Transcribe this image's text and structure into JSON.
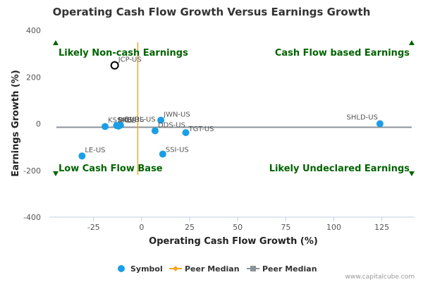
{
  "chart_data": {
    "type": "scatter",
    "title": "Operating Cash Flow Growth Versus Earnings Growth",
    "xlabel": "Operating Cash Flow Growth (%)",
    "ylabel": "Earnings Growth (%)",
    "xlim": [
      -48,
      142
    ],
    "ylim": [
      -400,
      400
    ],
    "x_ticks": [
      -25,
      0,
      25,
      50,
      75,
      100,
      125
    ],
    "y_ticks": [
      400,
      200,
      0,
      -200,
      -400
    ],
    "grid": false,
    "legend_position": "bottom",
    "peer_median_x": -2,
    "peer_median_y": -15,
    "quadrants": {
      "top_left": "Likely Non-cash Earnings",
      "top_right": "Cash Flow based Earnings",
      "bottom_left": "Low Cash Flow Base",
      "bottom_right": "Likely Undeclared Earnings"
    },
    "highlighted": {
      "label": "JCP-US",
      "x": -14,
      "y": 250
    },
    "points": [
      {
        "label": "JWN-US",
        "x": 10,
        "y": 15
      },
      {
        "label": "KSS-US",
        "x": -19,
        "y": -12
      },
      {
        "label": "M-US",
        "x": -12,
        "y": -10
      },
      {
        "label": "DDS-US",
        "x": 7,
        "y": -30
      },
      {
        "label": "TGT-US",
        "x": 23,
        "y": -38
      },
      {
        "label": "SSI-US",
        "x": 11,
        "y": -130
      },
      {
        "label": "LE-US",
        "x": -31,
        "y": -138
      },
      {
        "label": "SHLD-US",
        "x": 124,
        "y": 0
      },
      {
        "label": "BKS-US",
        "x": -13,
        "y": -8
      },
      {
        "label": "BURL-US",
        "x": -11,
        "y": -6
      }
    ],
    "legend": [
      {
        "label": "Symbol",
        "color": "#1b9ee8"
      },
      {
        "label": "Peer Median",
        "color": "#f5a623"
      },
      {
        "label": "Peer Median",
        "color": "#8c9399"
      }
    ]
  },
  "credit": "www.capitalcube.com",
  "colors": {
    "point": "#1b9ee8",
    "quadrant_text": "#006400",
    "median_x_line": "#f5a623",
    "median_y_line": "#8c9399"
  }
}
